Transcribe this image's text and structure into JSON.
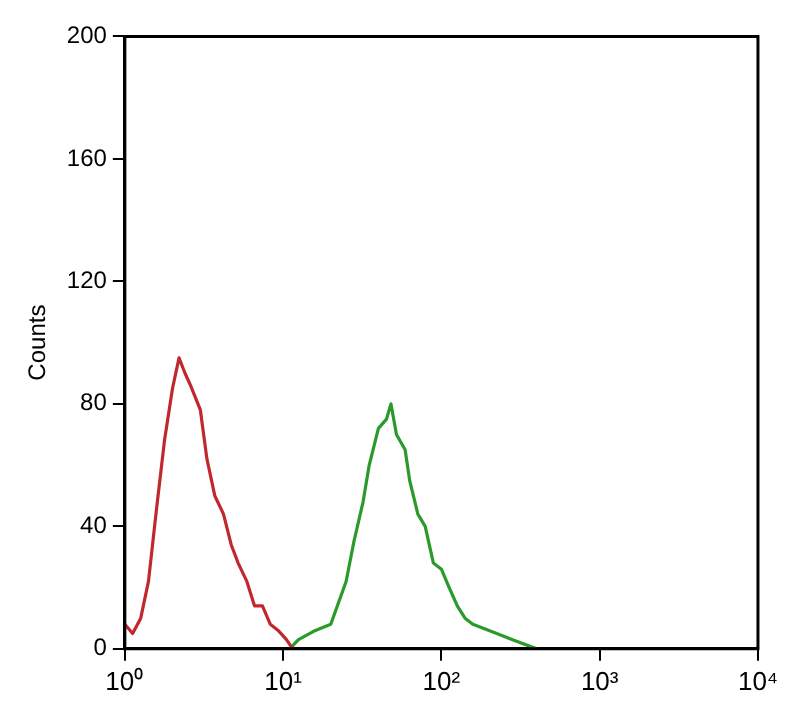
{
  "chart_data": {
    "type": "line",
    "ylabel": "Counts",
    "grid": false,
    "legend": false,
    "marker": "none",
    "log": "x",
    "xlim": [
      1,
      10000
    ],
    "xticks": [
      {
        "value": 1,
        "label": "10⁰"
      },
      {
        "value": 10,
        "label": "10¹"
      },
      {
        "value": 100,
        "label": "10²"
      },
      {
        "value": 1000,
        "label": "10³"
      },
      {
        "value": 10000,
        "label": "10⁴"
      }
    ],
    "ylim": [
      0,
      200
    ],
    "yticks": [
      0,
      40,
      80,
      120,
      160,
      200
    ],
    "series": [
      {
        "color": "#c0282d",
        "x": [
          1,
          1.12,
          1.26,
          1.41,
          1.58,
          1.78,
          2,
          2.2,
          2.4,
          2.6,
          3,
          3.3,
          3.7,
          4.2,
          4.7,
          5.2,
          5.9,
          6.6,
          7.4,
          8.3,
          9.3,
          10.5,
          11.5
        ],
        "values": [
          8,
          5,
          10,
          22,
          45,
          68,
          85,
          95,
          90,
          86,
          78,
          62,
          50,
          44,
          34,
          28,
          22,
          14,
          14,
          8,
          6,
          3,
          0
        ]
      },
      {
        "color": "#2a9a2a",
        "x": [
          11,
          12.5,
          16,
          20,
          22,
          25,
          28,
          32,
          35,
          40,
          45,
          48,
          52,
          59,
          63,
          71,
          79,
          89,
          100,
          112,
          126,
          141,
          158,
          200,
          250,
          316,
          400
        ],
        "values": [
          0,
          3,
          6,
          8,
          14,
          22,
          35,
          48,
          60,
          72,
          75,
          80,
          70,
          65,
          55,
          44,
          40,
          28,
          26,
          20,
          14,
          10,
          8,
          6,
          4,
          2,
          0
        ]
      }
    ]
  }
}
